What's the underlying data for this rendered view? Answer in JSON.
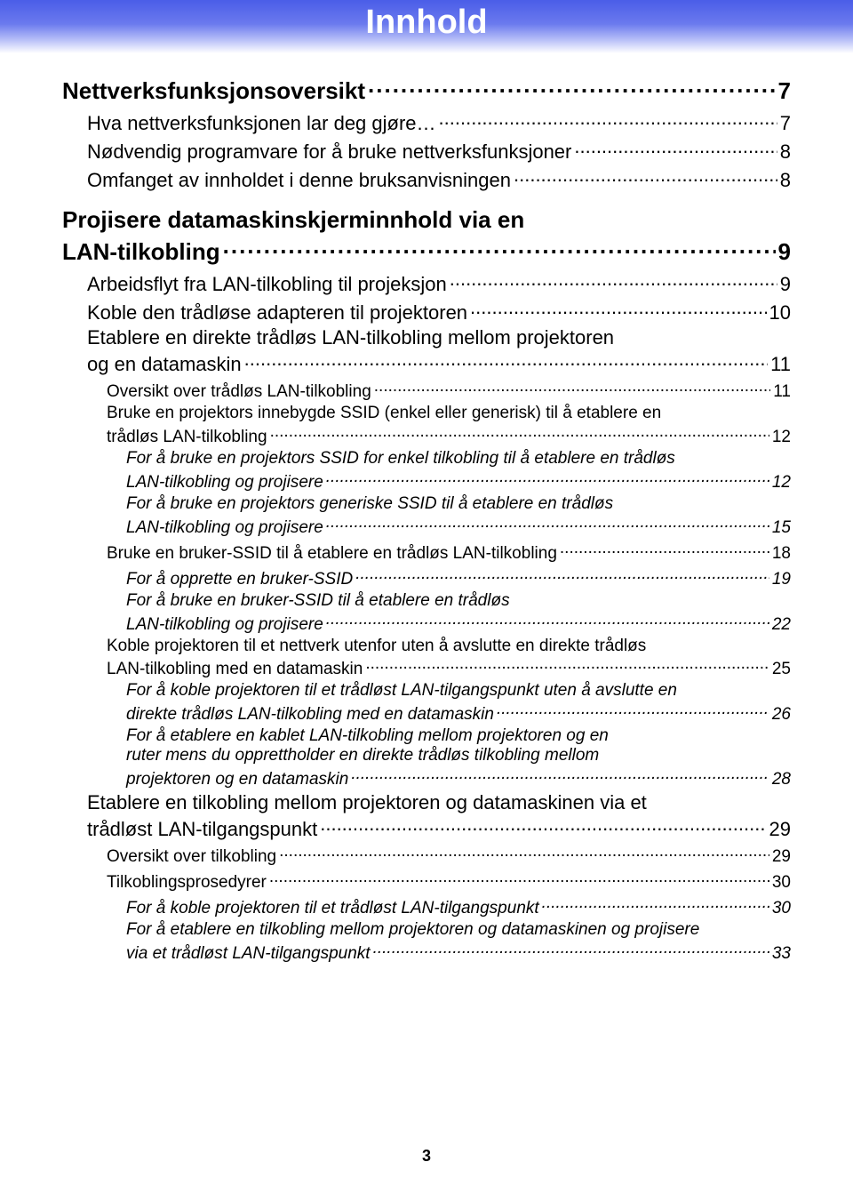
{
  "header": {
    "title": "Innhold"
  },
  "footer": {
    "page_number": "3"
  },
  "toc": {
    "items": [
      {
        "level": 1,
        "label": "Nettverksfunksjonsoversikt",
        "page": "7"
      },
      {
        "level": 2,
        "label": "Hva nettverksfunksjonen lar deg gjøre…",
        "page": "7"
      },
      {
        "level": 2,
        "label": "Nødvendig programvare for å bruke nettverksfunksjoner",
        "page": "8"
      },
      {
        "level": 2,
        "label": "Omfanget av innholdet i denne bruksanvisningen",
        "page": "8"
      },
      {
        "level": 1,
        "label_lines": [
          "Projisere datamaskinskjerminnhold via en",
          "LAN-tilkobling"
        ],
        "page": "9"
      },
      {
        "level": 2,
        "label": "Arbeidsflyt fra LAN-tilkobling til projeksjon",
        "page": "9"
      },
      {
        "level": 2,
        "label": "Koble den trådløse adapteren til projektoren",
        "page": "10"
      },
      {
        "level": 2,
        "label_lines": [
          "Etablere en direkte trådløs LAN-tilkobling mellom projektoren",
          "og en datamaskin"
        ],
        "page": "11"
      },
      {
        "level": 3,
        "label": "Oversikt over trådløs LAN-tilkobling",
        "page": "11"
      },
      {
        "level": 3,
        "label_lines": [
          "Bruke en projektors innebygde SSID (enkel eller generisk) til å etablere en",
          "trådløs LAN-tilkobling"
        ],
        "page": "12"
      },
      {
        "level": 4,
        "label_lines": [
          "For å bruke en projektors SSID for enkel tilkobling til å etablere en trådløs",
          "LAN-tilkobling og projisere"
        ],
        "page": "12"
      },
      {
        "level": 4,
        "label_lines": [
          "For å bruke en projektors generiske SSID til å etablere en trådløs",
          "LAN-tilkobling og projisere"
        ],
        "page": "15"
      },
      {
        "level": 3,
        "label": "Bruke en bruker-SSID til å etablere en trådløs LAN-tilkobling",
        "page": "18"
      },
      {
        "level": 4,
        "label": "For å opprette en bruker-SSID",
        "page": "19"
      },
      {
        "level": 4,
        "label_lines": [
          "For å bruke en bruker-SSID til å etablere en trådløs",
          "LAN-tilkobling og projisere"
        ],
        "page": "22"
      },
      {
        "level": 3,
        "label_lines": [
          "Koble projektoren til et nettverk utenfor uten å avslutte en direkte trådløs",
          "LAN-tilkobling med en datamaskin"
        ],
        "page": "25"
      },
      {
        "level": 4,
        "label_lines": [
          "For å koble projektoren til et trådløst LAN-tilgangspunkt uten å avslutte en",
          "direkte trådløs LAN-tilkobling med en datamaskin"
        ],
        "page": "26"
      },
      {
        "level": 4,
        "label_lines": [
          "For å etablere en kablet LAN-tilkobling mellom projektoren og en",
          "ruter mens du opprettholder en direkte trådløs tilkobling mellom",
          "projektoren og en datamaskin"
        ],
        "page": "28"
      },
      {
        "level": 2,
        "label_lines": [
          "Etablere en tilkobling mellom projektoren og datamaskinen via et",
          "trådløst LAN-tilgangspunkt"
        ],
        "page": "29"
      },
      {
        "level": 3,
        "label": "Oversikt over tilkobling",
        "page": "29"
      },
      {
        "level": 3,
        "label": "Tilkoblingsprosedyrer",
        "page": "30"
      },
      {
        "level": 4,
        "label": "For å koble projektoren til et trådløst LAN-tilgangspunkt",
        "page": "30"
      },
      {
        "level": 4,
        "label_lines": [
          "For å etablere en tilkobling mellom projektoren og datamaskinen og projisere",
          "via et trådløst LAN-tilgangspunkt"
        ],
        "page": "33"
      }
    ]
  }
}
